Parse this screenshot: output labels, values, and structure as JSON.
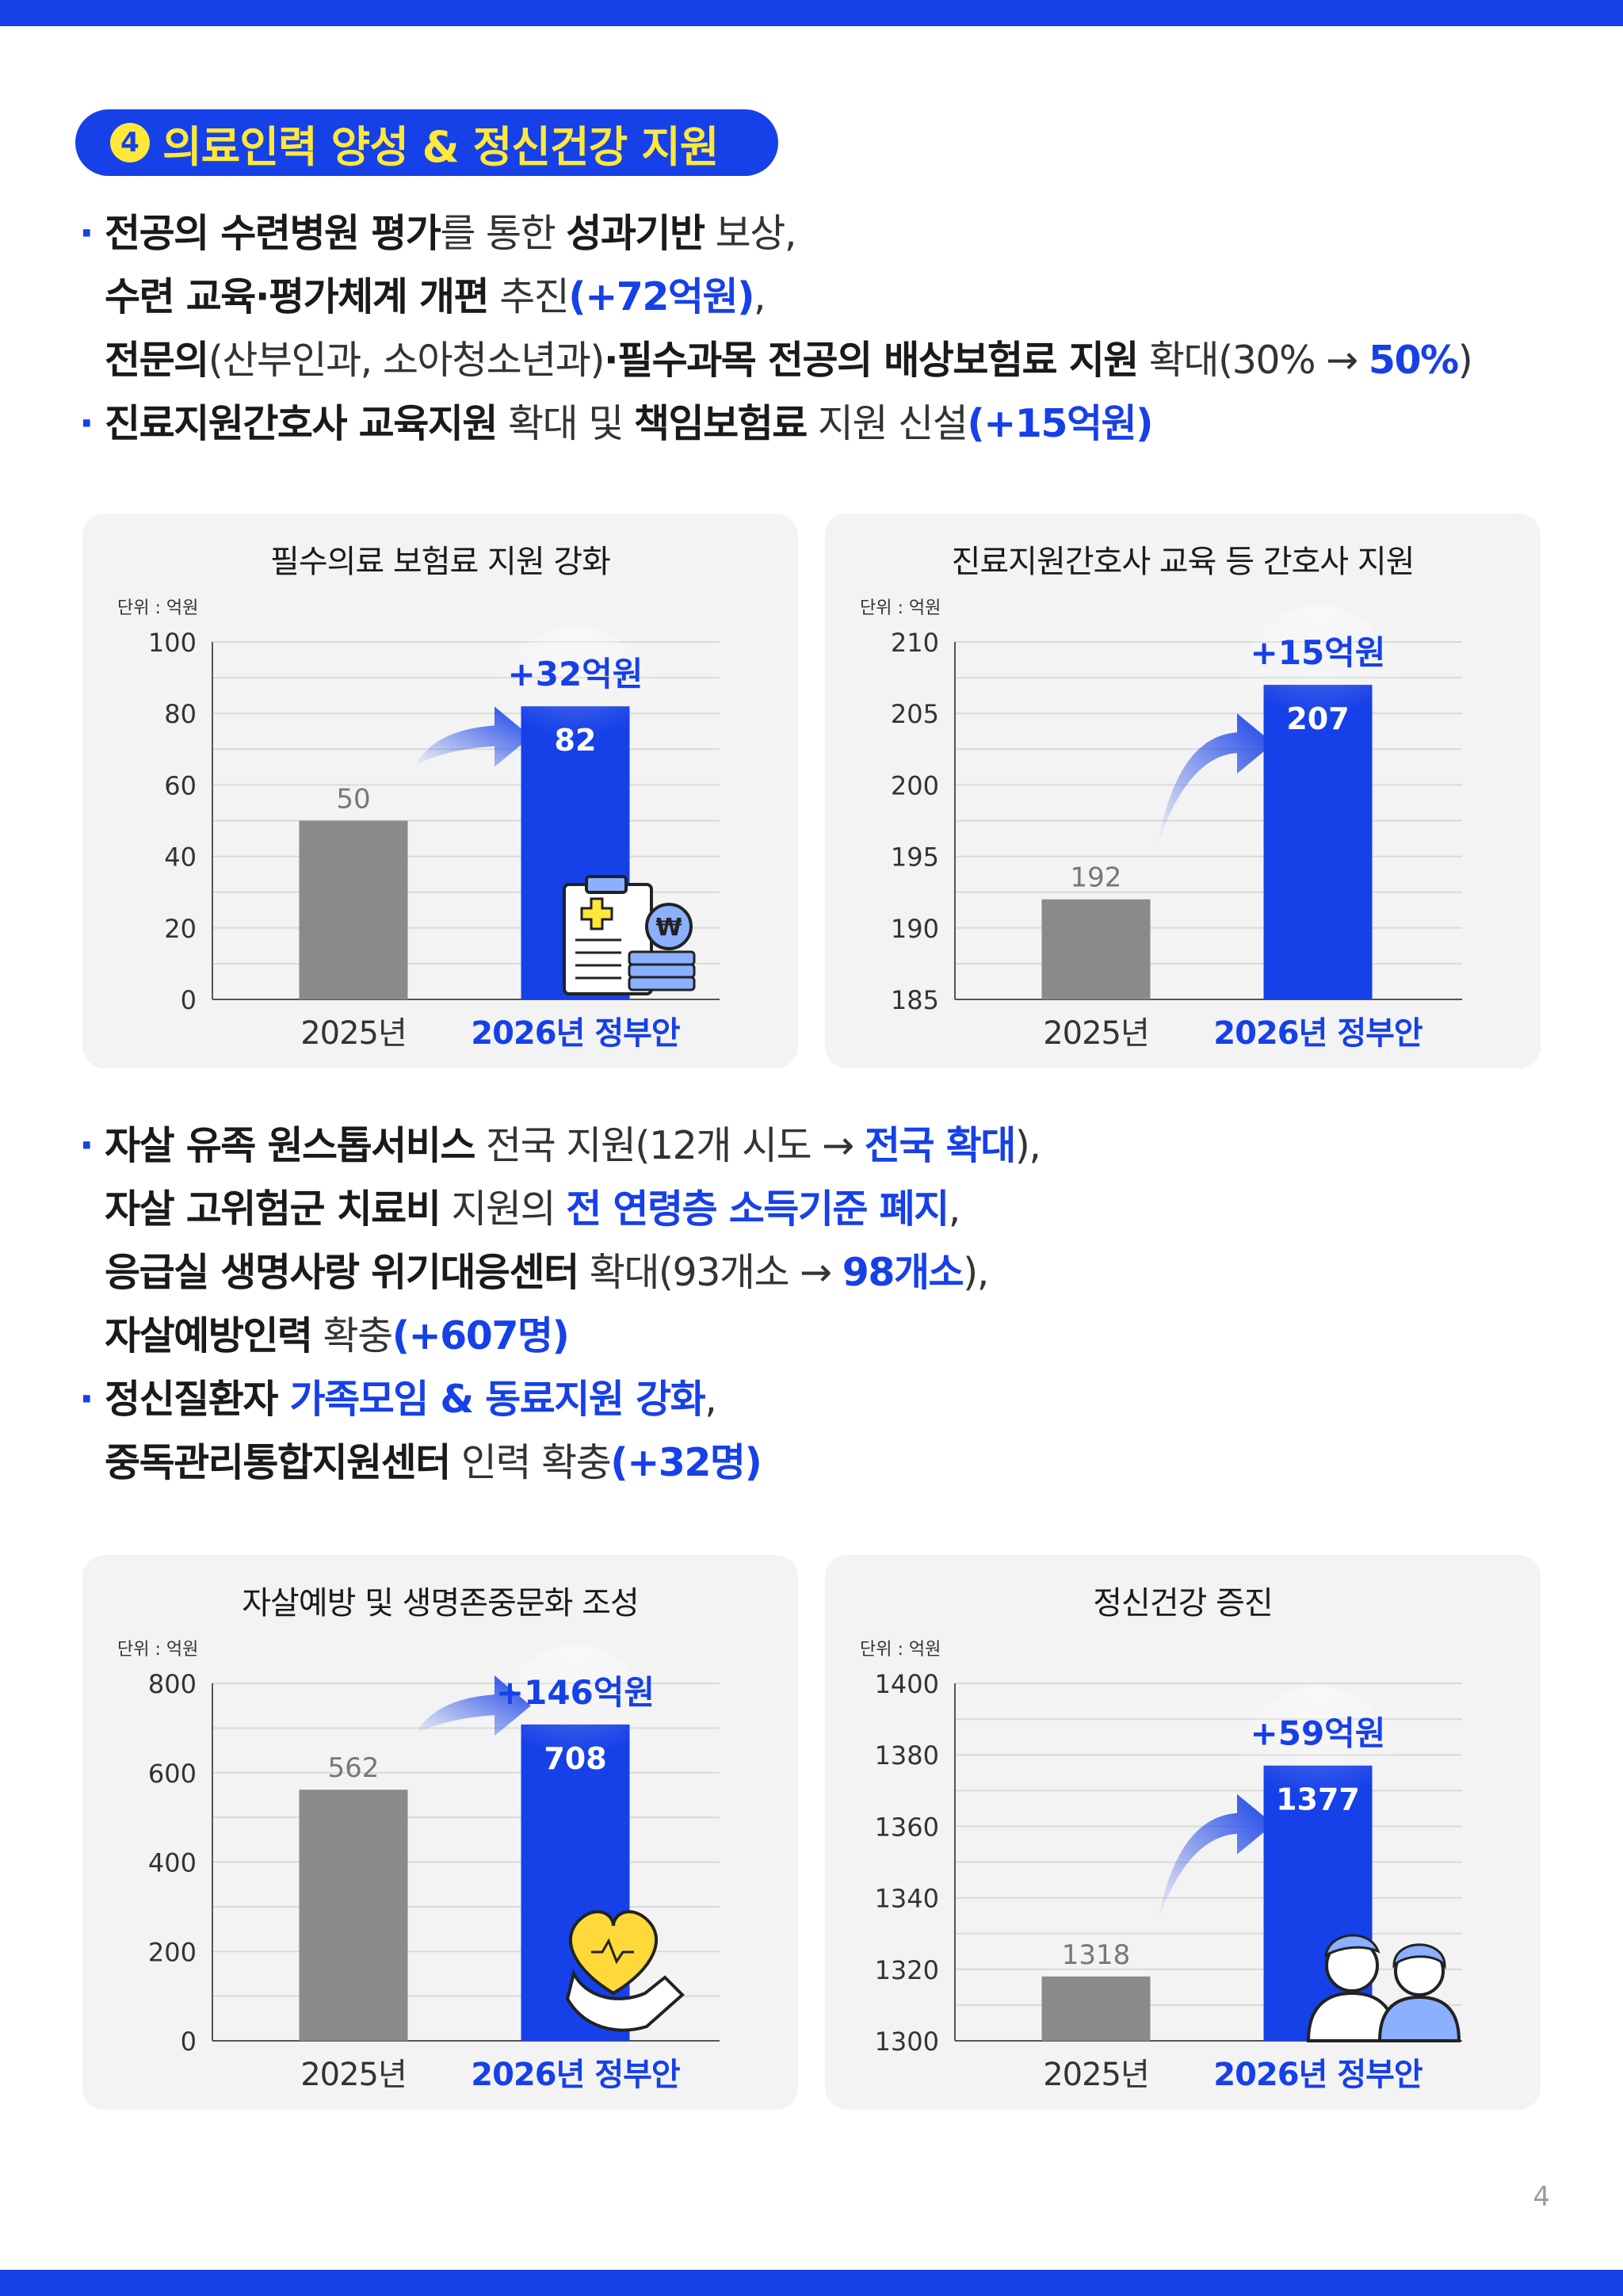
{
  "section": {
    "number": "4",
    "title": "의료인력 양성 & 정신건강 지원"
  },
  "bullets_top": [
    {
      "lines": [
        [
          {
            "t": "전공의 수련병원 평가",
            "s": "b"
          },
          {
            "t": "를 통한 ",
            "s": "n"
          },
          {
            "t": "성과기반",
            "s": "b"
          },
          {
            "t": " 보상,",
            "s": "n"
          }
        ],
        [
          {
            "t": "수련 교육·평가체계 개편",
            "s": "b"
          },
          {
            "t": " 추진",
            "s": "n"
          },
          {
            "t": "(+72억원)",
            "s": "blue"
          },
          {
            "t": ",",
            "s": "n"
          }
        ],
        [
          {
            "t": "전문의",
            "s": "b"
          },
          {
            "t": "(산부인과, 소아청소년과)",
            "s": "n"
          },
          {
            "t": "·필수과목 전공의 배상보험료 지원",
            "s": "b"
          },
          {
            "t": " 확대(30% → ",
            "s": "n"
          },
          {
            "t": "50%",
            "s": "blue"
          },
          {
            "t": ")",
            "s": "n"
          }
        ]
      ]
    },
    {
      "lines": [
        [
          {
            "t": "진료지원간호사 교육지원",
            "s": "b"
          },
          {
            "t": " 확대 및 ",
            "s": "n"
          },
          {
            "t": "책임보험료",
            "s": "b"
          },
          {
            "t": " 지원 신설",
            "s": "n"
          },
          {
            "t": "(+15억원)",
            "s": "blue"
          }
        ]
      ]
    }
  ],
  "bullets_bottom": [
    {
      "lines": [
        [
          {
            "t": "자살 유족 원스톱서비스",
            "s": "b"
          },
          {
            "t": " 전국 지원(12개 시도 → ",
            "s": "n"
          },
          {
            "t": "전국 확대",
            "s": "blue"
          },
          {
            "t": "),",
            "s": "n"
          }
        ],
        [
          {
            "t": "자살 고위험군 치료비",
            "s": "b"
          },
          {
            "t": " 지원의 ",
            "s": "n"
          },
          {
            "t": "전 연령층 소득기준 폐지",
            "s": "blue"
          },
          {
            "t": ",",
            "s": "n"
          }
        ],
        [
          {
            "t": "응급실 생명사랑 위기대응센터",
            "s": "b"
          },
          {
            "t": " 확대(93개소 → ",
            "s": "n"
          },
          {
            "t": "98개소",
            "s": "blue"
          },
          {
            "t": "),",
            "s": "n"
          }
        ],
        [
          {
            "t": "자살예방인력",
            "s": "b"
          },
          {
            "t": " 확충",
            "s": "n"
          },
          {
            "t": "(+607명)",
            "s": "blue"
          }
        ]
      ]
    },
    {
      "lines": [
        [
          {
            "t": "정신질환자 ",
            "s": "b"
          },
          {
            "t": "가족모임 & 동료지원 강화",
            "s": "blue"
          },
          {
            "t": ",",
            "s": "n"
          }
        ],
        [
          {
            "t": "중독관리통합지원센터",
            "s": "b"
          },
          {
            "t": " 인력 확충",
            "s": "n"
          },
          {
            "t": "(+32명)",
            "s": "blue"
          }
        ]
      ]
    }
  ],
  "chart_data": [
    {
      "type": "bar",
      "title": "필수의료 보험료 지원 강화",
      "unit": "단위 : 억원",
      "categories": [
        "2025년",
        "2026년 정부안"
      ],
      "values": [
        50,
        82
      ],
      "ylim": [
        0,
        100
      ],
      "yticks": [
        0,
        20,
        40,
        60,
        80,
        100
      ],
      "increase_label": "+32억원",
      "illustration": "clipboard-won-coins-icon"
    },
    {
      "type": "bar",
      "title": "진료지원간호사 교육 등 간호사 지원",
      "unit": "단위 : 억원",
      "categories": [
        "2025년",
        "2026년 정부안"
      ],
      "values": [
        192,
        207
      ],
      "ylim": [
        185,
        210
      ],
      "yticks": [
        185,
        190,
        195,
        200,
        205,
        210
      ],
      "increase_label": "+15억원",
      "illustration": ""
    },
    {
      "type": "bar",
      "title": "자살예방 및 생명존중문화 조성",
      "unit": "단위 : 억원",
      "categories": [
        "2025년",
        "2026년 정부안"
      ],
      "values": [
        562,
        708
      ],
      "ylim": [
        0,
        800
      ],
      "yticks": [
        0,
        200,
        400,
        600,
        800
      ],
      "increase_label": "+146억원",
      "illustration": "heart-hand-icon"
    },
    {
      "type": "bar",
      "title": "정신건강 증진",
      "unit": "단위 : 억원",
      "categories": [
        "2025년",
        "2026년 정부안"
      ],
      "values": [
        1318,
        1377
      ],
      "ylim": [
        1300,
        1400
      ],
      "yticks": [
        1300,
        1320,
        1340,
        1360,
        1380,
        1400
      ],
      "increase_label": "+59억원",
      "illustration": "two-people-icon"
    }
  ],
  "colors": {
    "accent": "#1640e8",
    "highlight": "#ffe83a",
    "bar_2025": "#8a8a8a",
    "panel_bg": "#f3f3f3"
  },
  "page_number": "4"
}
